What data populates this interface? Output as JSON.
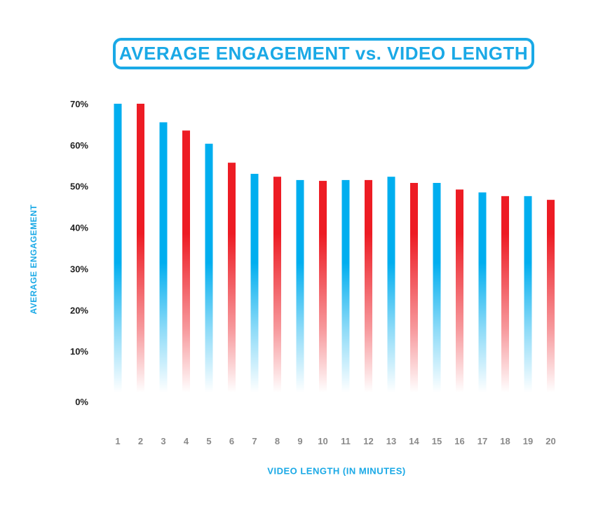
{
  "title": "AVERAGE ENGAGEMENT vs. VIDEO LENGTH",
  "colors": {
    "blue": "#00aeef",
    "red": "#ed1c24",
    "accent": "#1aa9e6"
  },
  "chart_data": {
    "type": "bar",
    "title": "AVERAGE ENGAGEMENT vs. VIDEO LENGTH",
    "xlabel": "VIDEO LENGTH (IN MINUTES)",
    "ylabel": "AVERAGE ENGAGEMENT",
    "categories": [
      "1",
      "2",
      "3",
      "4",
      "5",
      "6",
      "7",
      "8",
      "9",
      "10",
      "11",
      "12",
      "13",
      "14",
      "15",
      "16",
      "17",
      "18",
      "19",
      "20"
    ],
    "values": [
      70,
      70,
      65.5,
      63.5,
      60.3,
      55.7,
      53,
      52.3,
      51.5,
      51.3,
      51.5,
      51.5,
      52.3,
      50.8,
      50.8,
      49.2,
      48.5,
      47.6,
      47.6,
      46.7
    ],
    "bar_colors": [
      "blue",
      "red",
      "blue",
      "red",
      "blue",
      "red",
      "blue",
      "red",
      "blue",
      "red",
      "blue",
      "red",
      "blue",
      "red",
      "blue",
      "red",
      "blue",
      "red",
      "blue",
      "red"
    ],
    "ylim": [
      0,
      70
    ],
    "yticks": [
      0,
      10,
      20,
      30,
      40,
      50,
      60,
      70
    ],
    "ytick_labels": [
      "0%",
      "10%",
      "20%",
      "30%",
      "40%",
      "50%",
      "60%",
      "70%"
    ],
    "grid": false,
    "legend": "none"
  }
}
